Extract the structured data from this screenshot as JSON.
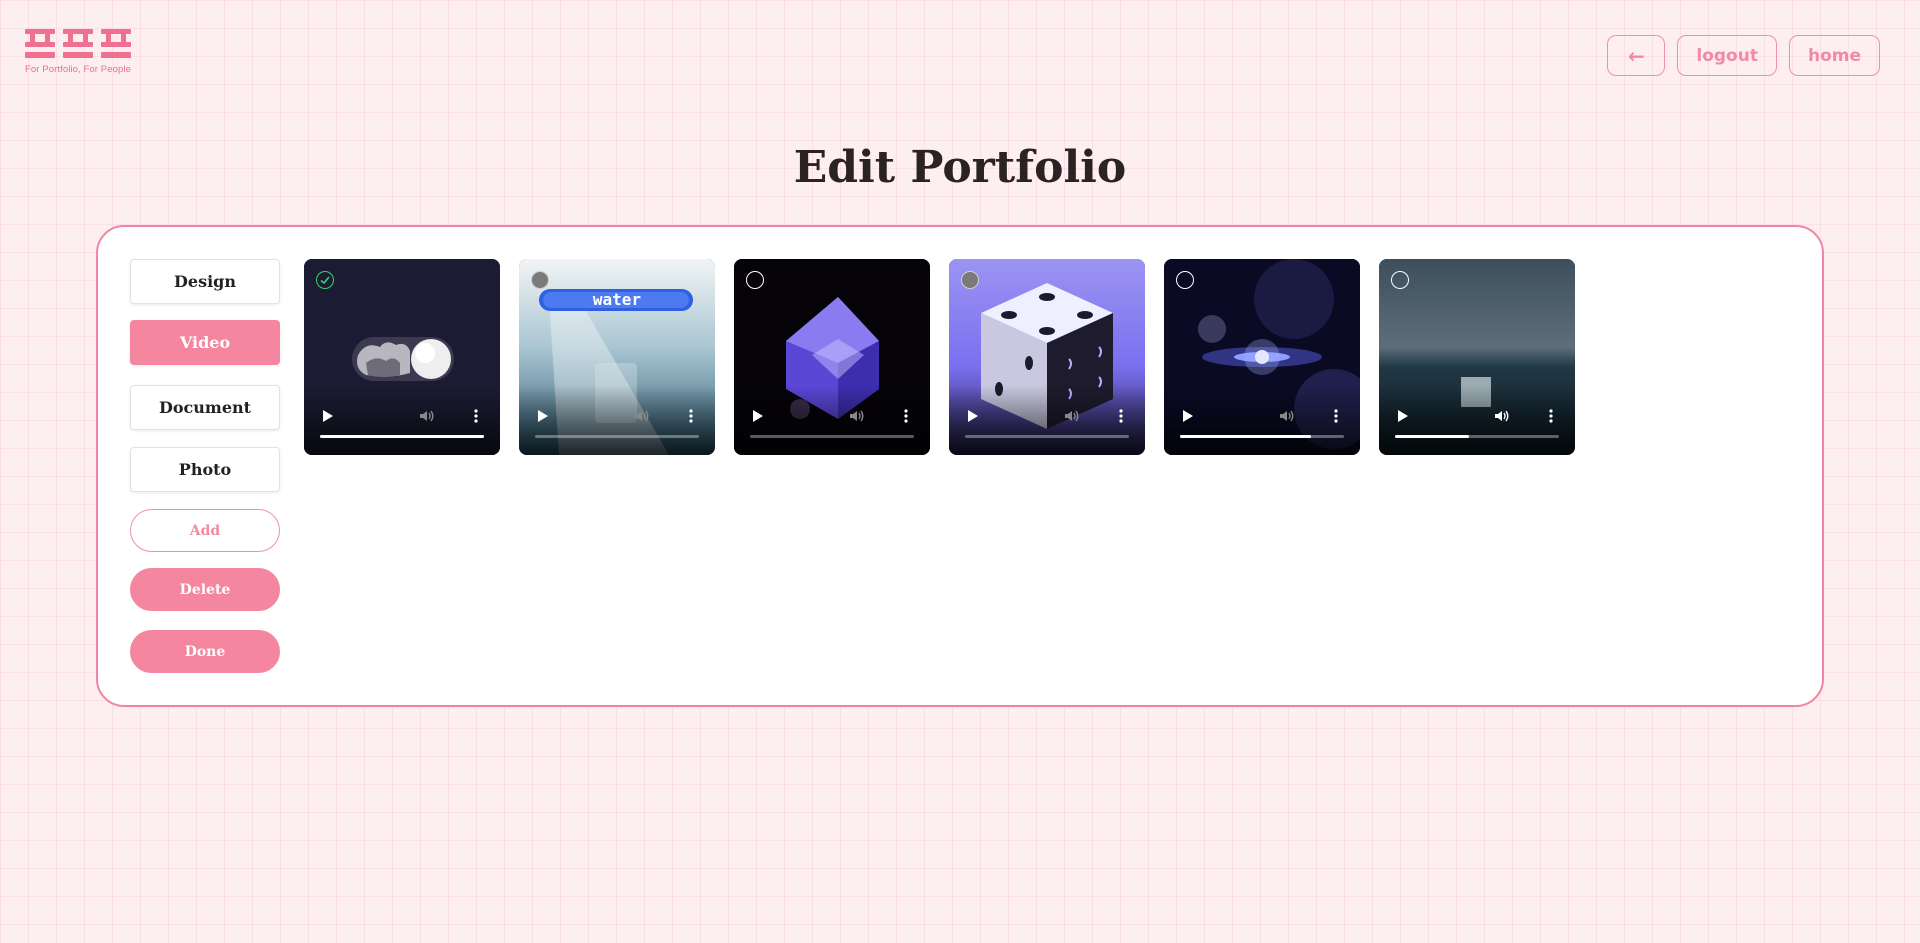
{
  "brand": {
    "tagline": "For Portfolio, For People",
    "color": "#f0708f"
  },
  "nav": {
    "back_label": "←",
    "logout_label": "logout",
    "home_label": "home"
  },
  "page": {
    "title": "Edit Portfolio"
  },
  "sidebar": {
    "categories": [
      {
        "label": "Design",
        "active": false
      },
      {
        "label": "Video",
        "active": true
      },
      {
        "label": "Document",
        "active": false
      },
      {
        "label": "Photo",
        "active": false
      }
    ],
    "actions": {
      "add_label": "Add",
      "delete_label": "Delete",
      "done_label": "Done"
    }
  },
  "videos": [
    {
      "name": "toggle-switch-video",
      "selected": true,
      "progress": 1.0,
      "muted": true,
      "caption": ""
    },
    {
      "name": "water-video",
      "selected": false,
      "progress": 0.0,
      "muted": true,
      "caption": "water"
    },
    {
      "name": "crystal-cube-video",
      "selected": false,
      "progress": 0.0,
      "muted": true,
      "caption": ""
    },
    {
      "name": "dice-video",
      "selected": false,
      "progress": 0.0,
      "muted": true,
      "caption": ""
    },
    {
      "name": "space-video",
      "selected": false,
      "progress": 0.8,
      "muted": true,
      "caption": ""
    },
    {
      "name": "fog-cube-video",
      "selected": false,
      "progress": 0.45,
      "muted": false,
      "caption": ""
    }
  ],
  "colors": {
    "accent": "#f4879f",
    "background": "#fdeef2",
    "border": "#ef86a1",
    "check": "#37d36b"
  }
}
